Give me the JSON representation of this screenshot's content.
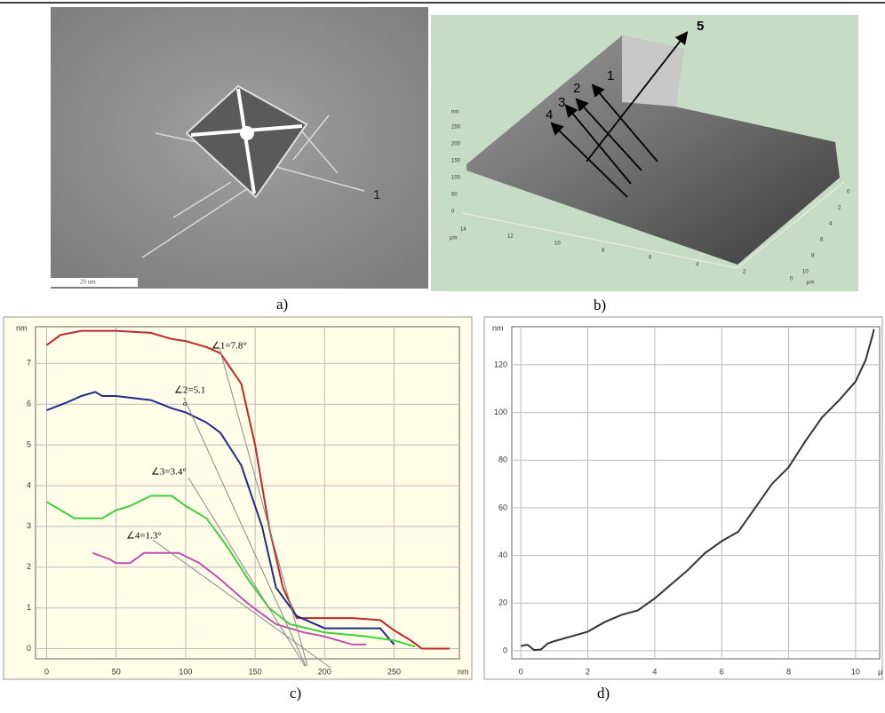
{
  "panels": {
    "a": {
      "label": "a)",
      "scale_bar": "20 um",
      "marker": "1"
    },
    "b": {
      "label": "b)",
      "arrows": [
        "1",
        "2",
        "3",
        "4",
        "5"
      ],
      "z_unit": "nm",
      "z_ticks": [
        250,
        200,
        150,
        100,
        50,
        0
      ],
      "x_unit": "μm",
      "x_ticks": [
        14,
        12,
        10,
        8,
        6,
        4,
        2,
        0
      ],
      "y_unit": "μm",
      "y_ticks": [
        0,
        2,
        4,
        6,
        8,
        10
      ]
    },
    "c": {
      "label": "c)"
    },
    "d": {
      "label": "d)"
    }
  },
  "chart_data": [
    {
      "type": "line",
      "x_unit": "nm",
      "y_unit": "nm",
      "background": "#fffde8",
      "grid": true,
      "xlim": [
        -8,
        297
      ],
      "ylim": [
        -0.25,
        7.9
      ],
      "xticks": [
        0,
        50,
        100,
        150,
        200,
        250
      ],
      "yticks": [
        0,
        1,
        2,
        3,
        4,
        5,
        6,
        7
      ],
      "annotations": [
        "∠1=7.8°",
        "∠2=5.1",
        "o",
        "∠3=3.4°",
        "∠4=1.3°"
      ],
      "series": [
        {
          "color": "#c0282a",
          "x": [
            0,
            10,
            25,
            50,
            75,
            90,
            100,
            115,
            125,
            140,
            150,
            160,
            170,
            180,
            200,
            220,
            240,
            250,
            262,
            270,
            290
          ],
          "values": [
            7.45,
            7.7,
            7.8,
            7.8,
            7.75,
            7.6,
            7.55,
            7.4,
            7.25,
            6.5,
            5.0,
            3.0,
            1.5,
            0.75,
            0.75,
            0.75,
            0.7,
            0.45,
            0.2,
            0.0,
            0.0
          ]
        },
        {
          "color": "#1f2a8a",
          "x": [
            0,
            15,
            25,
            35,
            40,
            50,
            75,
            90,
            100,
            115,
            125,
            140,
            155,
            165,
            180,
            200,
            220,
            240,
            250
          ],
          "values": [
            5.85,
            6.05,
            6.2,
            6.3,
            6.2,
            6.2,
            6.1,
            5.9,
            5.8,
            5.55,
            5.3,
            4.5,
            3.0,
            1.5,
            0.8,
            0.5,
            0.5,
            0.5,
            0.1
          ]
        },
        {
          "color": "#3ecf3e",
          "x": [
            0,
            10,
            20,
            40,
            50,
            60,
            75,
            90,
            100,
            115,
            130,
            145,
            160,
            175,
            200,
            230,
            250,
            265
          ],
          "values": [
            3.6,
            3.4,
            3.2,
            3.2,
            3.4,
            3.5,
            3.75,
            3.75,
            3.5,
            3.2,
            2.5,
            1.7,
            1.0,
            0.6,
            0.4,
            0.3,
            0.2,
            0.05
          ]
        },
        {
          "color": "#c050b0",
          "x": [
            33,
            45,
            50,
            60,
            70,
            80,
            95,
            110,
            125,
            145,
            165,
            185,
            200,
            220,
            230
          ],
          "values": [
            2.35,
            2.2,
            2.1,
            2.1,
            2.35,
            2.35,
            2.35,
            2.1,
            1.7,
            1.1,
            0.6,
            0.4,
            0.3,
            0.1,
            0.1
          ]
        }
      ]
    },
    {
      "type": "line",
      "x_unit": "μ",
      "y_unit": "nm",
      "background": "#ffffff",
      "grid": true,
      "xlim": [
        -0.27,
        10.72
      ],
      "ylim": [
        -3.4,
        136
      ],
      "xticks": [
        0,
        2,
        4,
        6,
        8,
        10
      ],
      "yticks": [
        0,
        20,
        40,
        60,
        80,
        100,
        120
      ],
      "series": [
        {
          "color": "#333333",
          "x": [
            0,
            0.2,
            0.4,
            0.6,
            0.8,
            1,
            1.5,
            2,
            2.5,
            3,
            3.5,
            4,
            4.5,
            5,
            5.5,
            6,
            6.5,
            7,
            7.5,
            8,
            8.5,
            9,
            9.5,
            10,
            10.3,
            10.5,
            10.55
          ],
          "values": [
            2,
            2.5,
            0.3,
            0.5,
            3,
            4,
            6,
            8,
            12,
            15,
            17,
            22,
            28,
            34,
            41,
            46,
            50,
            60,
            70,
            77,
            88,
            98,
            105,
            113,
            122,
            132,
            135
          ]
        }
      ]
    }
  ]
}
